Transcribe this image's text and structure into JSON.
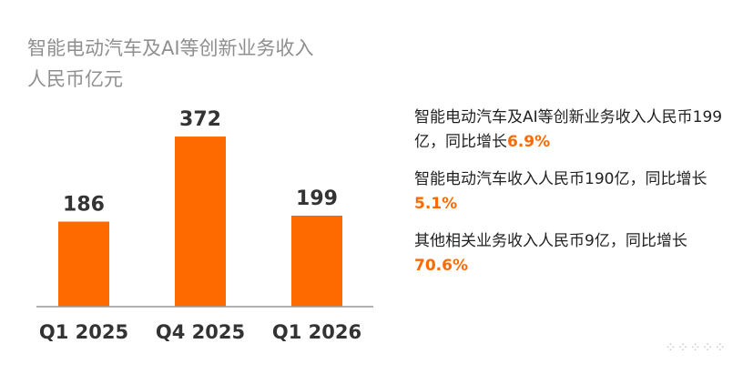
{
  "title": {
    "line1": "智能电动汽车及AI等创新业务收入",
    "line2": "人民币亿元"
  },
  "colors": {
    "bar": "#ff6a00",
    "axis": "#999999",
    "highlight": "#ff6a00"
  },
  "chart_data": {
    "type": "bar",
    "categories": [
      "Q1 2025",
      "Q4 2025",
      "Q1 2026"
    ],
    "values": [
      186,
      372,
      199
    ],
    "value_labels": [
      "186",
      "372",
      "199"
    ],
    "title": "智能电动汽车及AI等创新业务收入",
    "ylabel": "人民币亿元",
    "ylim": [
      0,
      420
    ],
    "grid": false,
    "legend": "none"
  },
  "notes": [
    {
      "text": "智能电动汽车及AI等创新业务收入人民币199亿，同比增长",
      "value": "6.9%"
    },
    {
      "text": "智能电动汽车收入人民币190亿，同比增长",
      "value": "5.1%"
    },
    {
      "text": "其他相关业务收入人民币9亿，同比增长",
      "value": "70.6%"
    }
  ],
  "footer_icon": "dots-icon"
}
